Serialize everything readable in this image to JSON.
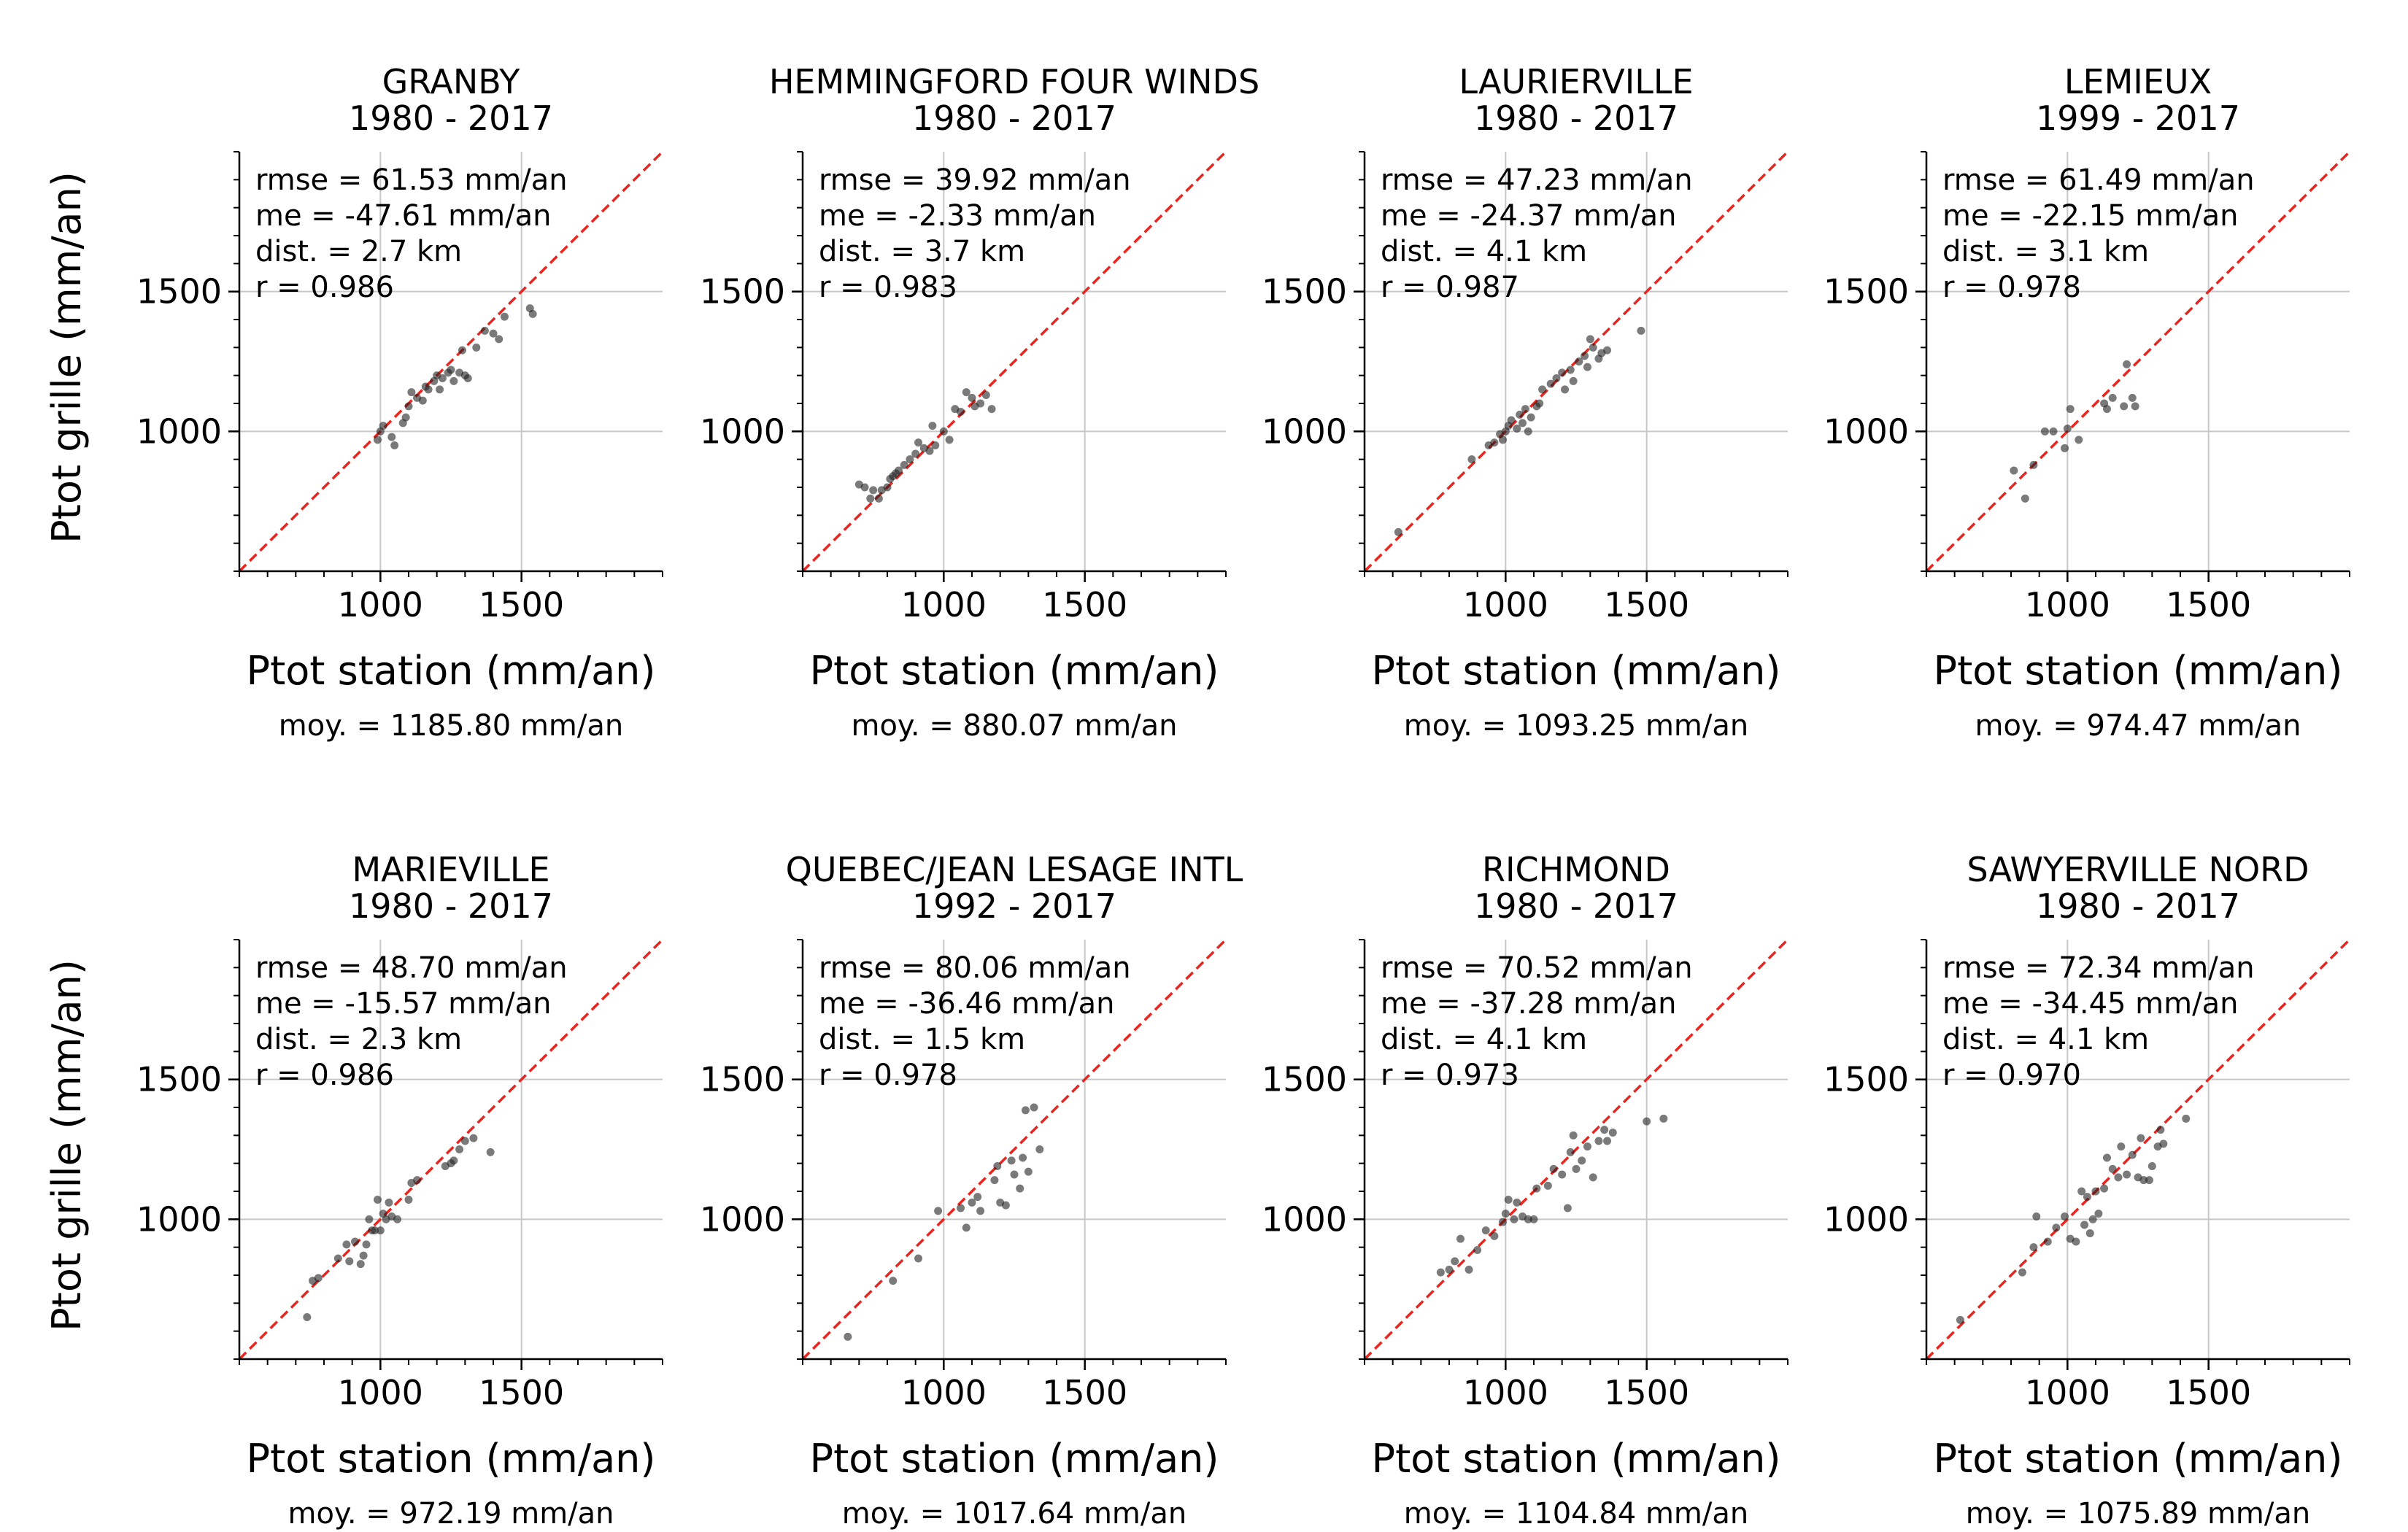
{
  "figure": {
    "ylabel": "Ptot grille (mm/an)",
    "xlabel": "Ptot station (mm/an)"
  },
  "chart_data": [
    {
      "type": "scatter",
      "title": "GRANBY",
      "subtitle": "1980 - 2017",
      "xlabel": "Ptot station (mm/an)",
      "ylabel": "Ptot grille (mm/an)",
      "xlim": [
        500,
        2000
      ],
      "ylim": [
        500,
        2000
      ],
      "xticks": [
        1000,
        1500
      ],
      "yticks": [
        1000,
        1500
      ],
      "grid": true,
      "stats": [
        "rmse = 61.53 mm/an",
        "me = -47.61 mm/an",
        "dist. = 2.7 km",
        "r = 0.986"
      ],
      "footer": "moy. = 1185.80 mm/an",
      "points": [
        [
          990,
          970
        ],
        [
          1000,
          1000
        ],
        [
          1010,
          1020
        ],
        [
          1040,
          980
        ],
        [
          1050,
          950
        ],
        [
          1080,
          1030
        ],
        [
          1090,
          1050
        ],
        [
          1100,
          1090
        ],
        [
          1110,
          1140
        ],
        [
          1130,
          1120
        ],
        [
          1150,
          1110
        ],
        [
          1160,
          1160
        ],
        [
          1170,
          1150
        ],
        [
          1190,
          1180
        ],
        [
          1200,
          1200
        ],
        [
          1210,
          1150
        ],
        [
          1220,
          1190
        ],
        [
          1240,
          1210
        ],
        [
          1250,
          1220
        ],
        [
          1260,
          1180
        ],
        [
          1280,
          1210
        ],
        [
          1290,
          1290
        ],
        [
          1300,
          1200
        ],
        [
          1310,
          1190
        ],
        [
          1340,
          1300
        ],
        [
          1370,
          1360
        ],
        [
          1400,
          1350
        ],
        [
          1420,
          1330
        ],
        [
          1440,
          1410
        ],
        [
          1530,
          1440
        ],
        [
          1540,
          1420
        ]
      ]
    },
    {
      "type": "scatter",
      "title": "HEMMINGFORD FOUR WINDS",
      "subtitle": "1980 - 2017",
      "xlabel": "Ptot station (mm/an)",
      "ylabel": "Ptot grille (mm/an)",
      "xlim": [
        500,
        2000
      ],
      "ylim": [
        500,
        2000
      ],
      "xticks": [
        1000,
        1500
      ],
      "yticks": [
        1000,
        1500
      ],
      "grid": true,
      "stats": [
        "rmse = 39.92 mm/an",
        "me = -2.33 mm/an",
        "dist. = 3.7 km",
        "r = 0.983"
      ],
      "footer": "moy. = 880.07 mm/an",
      "points": [
        [
          700,
          810
        ],
        [
          720,
          800
        ],
        [
          740,
          760
        ],
        [
          750,
          790
        ],
        [
          770,
          760
        ],
        [
          780,
          790
        ],
        [
          800,
          800
        ],
        [
          810,
          830
        ],
        [
          820,
          840
        ],
        [
          830,
          850
        ],
        [
          840,
          860
        ],
        [
          860,
          880
        ],
        [
          880,
          900
        ],
        [
          900,
          920
        ],
        [
          910,
          960
        ],
        [
          930,
          940
        ],
        [
          950,
          930
        ],
        [
          960,
          1020
        ],
        [
          970,
          950
        ],
        [
          1000,
          1000
        ],
        [
          1020,
          970
        ],
        [
          1040,
          1080
        ],
        [
          1060,
          1070
        ],
        [
          1080,
          1140
        ],
        [
          1100,
          1120
        ],
        [
          1110,
          1090
        ],
        [
          1130,
          1100
        ],
        [
          1150,
          1130
        ],
        [
          1170,
          1080
        ]
      ]
    },
    {
      "type": "scatter",
      "title": "LAURIERVILLE",
      "subtitle": "1980 - 2017",
      "xlabel": "Ptot station (mm/an)",
      "ylabel": "Ptot grille (mm/an)",
      "xlim": [
        500,
        2000
      ],
      "ylim": [
        500,
        2000
      ],
      "xticks": [
        1000,
        1500
      ],
      "yticks": [
        1000,
        1500
      ],
      "grid": true,
      "stats": [
        "rmse = 47.23 mm/an",
        "me = -24.37 mm/an",
        "dist. = 4.1 km",
        "r = 0.987"
      ],
      "footer": "moy. = 1093.25 mm/an",
      "points": [
        [
          620,
          640
        ],
        [
          880,
          900
        ],
        [
          940,
          950
        ],
        [
          960,
          960
        ],
        [
          980,
          990
        ],
        [
          990,
          970
        ],
        [
          1000,
          1000
        ],
        [
          1010,
          1020
        ],
        [
          1020,
          1040
        ],
        [
          1040,
          1010
        ],
        [
          1050,
          1060
        ],
        [
          1060,
          1030
        ],
        [
          1070,
          1080
        ],
        [
          1080,
          1000
        ],
        [
          1090,
          1050
        ],
        [
          1110,
          1090
        ],
        [
          1120,
          1100
        ],
        [
          1130,
          1150
        ],
        [
          1160,
          1170
        ],
        [
          1180,
          1190
        ],
        [
          1200,
          1210
        ],
        [
          1210,
          1150
        ],
        [
          1230,
          1220
        ],
        [
          1240,
          1180
        ],
        [
          1260,
          1250
        ],
        [
          1280,
          1270
        ],
        [
          1290,
          1230
        ],
        [
          1300,
          1330
        ],
        [
          1310,
          1300
        ],
        [
          1330,
          1260
        ],
        [
          1340,
          1280
        ],
        [
          1360,
          1290
        ],
        [
          1480,
          1360
        ]
      ]
    },
    {
      "type": "scatter",
      "title": "LEMIEUX",
      "subtitle": "1999 - 2017",
      "xlabel": "Ptot station (mm/an)",
      "ylabel": "Ptot grille (mm/an)",
      "xlim": [
        500,
        2000
      ],
      "ylim": [
        500,
        2000
      ],
      "xticks": [
        1000,
        1500
      ],
      "yticks": [
        1000,
        1500
      ],
      "grid": true,
      "stats": [
        "rmse = 61.49 mm/an",
        "me = -22.15 mm/an",
        "dist. = 3.1 km",
        "r = 0.978"
      ],
      "footer": "moy. = 974.47 mm/an",
      "points": [
        [
          810,
          860
        ],
        [
          850,
          760
        ],
        [
          880,
          880
        ],
        [
          920,
          1000
        ],
        [
          950,
          1000
        ],
        [
          990,
          940
        ],
        [
          1000,
          1010
        ],
        [
          1010,
          1080
        ],
        [
          1040,
          970
        ],
        [
          1130,
          1100
        ],
        [
          1140,
          1080
        ],
        [
          1160,
          1120
        ],
        [
          1200,
          1090
        ],
        [
          1210,
          1240
        ],
        [
          1230,
          1120
        ],
        [
          1240,
          1090
        ]
      ]
    },
    {
      "type": "scatter",
      "title": "MARIEVILLE",
      "subtitle": "1980 - 2017",
      "xlabel": "Ptot station (mm/an)",
      "ylabel": "Ptot grille (mm/an)",
      "xlim": [
        500,
        2000
      ],
      "ylim": [
        500,
        2000
      ],
      "xticks": [
        1000,
        1500
      ],
      "yticks": [
        1000,
        1500
      ],
      "grid": true,
      "stats": [
        "rmse = 48.70 mm/an",
        "me = -15.57 mm/an",
        "dist. = 2.3 km",
        "r = 0.986"
      ],
      "footer": "moy. = 972.19 mm/an",
      "points": [
        [
          740,
          650
        ],
        [
          760,
          780
        ],
        [
          780,
          790
        ],
        [
          850,
          860
        ],
        [
          880,
          910
        ],
        [
          890,
          850
        ],
        [
          910,
          920
        ],
        [
          930,
          840
        ],
        [
          940,
          870
        ],
        [
          950,
          910
        ],
        [
          960,
          1000
        ],
        [
          970,
          960
        ],
        [
          980,
          960
        ],
        [
          990,
          1070
        ],
        [
          1000,
          960
        ],
        [
          1010,
          1020
        ],
        [
          1020,
          1000
        ],
        [
          1030,
          1060
        ],
        [
          1040,
          1010
        ],
        [
          1060,
          1000
        ],
        [
          1100,
          1070
        ],
        [
          1110,
          1130
        ],
        [
          1130,
          1140
        ],
        [
          1230,
          1190
        ],
        [
          1250,
          1200
        ],
        [
          1260,
          1210
        ],
        [
          1280,
          1250
        ],
        [
          1300,
          1280
        ],
        [
          1330,
          1290
        ],
        [
          1390,
          1240
        ]
      ]
    },
    {
      "type": "scatter",
      "title": "QUEBEC/JEAN LESAGE INTL",
      "subtitle": "1992 - 2017",
      "xlabel": "Ptot station (mm/an)",
      "ylabel": "Ptot grille (mm/an)",
      "xlim": [
        500,
        2000
      ],
      "ylim": [
        500,
        2000
      ],
      "xticks": [
        1000,
        1500
      ],
      "yticks": [
        1000,
        1500
      ],
      "grid": true,
      "stats": [
        "rmse = 80.06 mm/an",
        "me = -36.46 mm/an",
        "dist. = 1.5 km",
        "r = 0.978"
      ],
      "footer": "moy. = 1017.64 mm/an",
      "points": [
        [
          660,
          580
        ],
        [
          820,
          780
        ],
        [
          910,
          860
        ],
        [
          980,
          1030
        ],
        [
          1060,
          1040
        ],
        [
          1080,
          970
        ],
        [
          1100,
          1060
        ],
        [
          1120,
          1080
        ],
        [
          1130,
          1030
        ],
        [
          1180,
          1140
        ],
        [
          1190,
          1190
        ],
        [
          1200,
          1060
        ],
        [
          1220,
          1050
        ],
        [
          1240,
          1210
        ],
        [
          1250,
          1160
        ],
        [
          1270,
          1110
        ],
        [
          1280,
          1220
        ],
        [
          1290,
          1390
        ],
        [
          1300,
          1170
        ],
        [
          1320,
          1400
        ],
        [
          1340,
          1250
        ]
      ]
    },
    {
      "type": "scatter",
      "title": "RICHMOND",
      "subtitle": "1980 - 2017",
      "xlabel": "Ptot station (mm/an)",
      "ylabel": "Ptot grille (mm/an)",
      "xlim": [
        500,
        2000
      ],
      "ylim": [
        500,
        2000
      ],
      "xticks": [
        1000,
        1500
      ],
      "yticks": [
        1000,
        1500
      ],
      "grid": true,
      "stats": [
        "rmse = 70.52 mm/an",
        "me = -37.28 mm/an",
        "dist. = 4.1 km",
        "r = 0.973"
      ],
      "footer": "moy. = 1104.84 mm/an",
      "points": [
        [
          770,
          810
        ],
        [
          800,
          820
        ],
        [
          820,
          850
        ],
        [
          840,
          930
        ],
        [
          870,
          820
        ],
        [
          900,
          890
        ],
        [
          930,
          960
        ],
        [
          960,
          940
        ],
        [
          990,
          990
        ],
        [
          1000,
          1020
        ],
        [
          1010,
          1070
        ],
        [
          1030,
          1000
        ],
        [
          1040,
          1060
        ],
        [
          1060,
          1010
        ],
        [
          1080,
          1000
        ],
        [
          1100,
          1000
        ],
        [
          1110,
          1110
        ],
        [
          1150,
          1120
        ],
        [
          1170,
          1180
        ],
        [
          1200,
          1160
        ],
        [
          1220,
          1040
        ],
        [
          1230,
          1240
        ],
        [
          1240,
          1300
        ],
        [
          1250,
          1180
        ],
        [
          1270,
          1210
        ],
        [
          1290,
          1260
        ],
        [
          1310,
          1150
        ],
        [
          1330,
          1280
        ],
        [
          1350,
          1320
        ],
        [
          1360,
          1280
        ],
        [
          1380,
          1310
        ],
        [
          1500,
          1350
        ],
        [
          1560,
          1360
        ]
      ]
    },
    {
      "type": "scatter",
      "title": "SAWYERVILLE NORD",
      "subtitle": "1980 - 2017",
      "xlabel": "Ptot station (mm/an)",
      "ylabel": "Ptot grille (mm/an)",
      "xlim": [
        500,
        2000
      ],
      "ylim": [
        500,
        2000
      ],
      "xticks": [
        1000,
        1500
      ],
      "yticks": [
        1000,
        1500
      ],
      "grid": true,
      "stats": [
        "rmse = 72.34 mm/an",
        "me = -34.45 mm/an",
        "dist. = 4.1 km",
        "r = 0.970"
      ],
      "footer": "moy. = 1075.89 mm/an",
      "points": [
        [
          620,
          640
        ],
        [
          840,
          810
        ],
        [
          880,
          900
        ],
        [
          890,
          1010
        ],
        [
          930,
          920
        ],
        [
          960,
          970
        ],
        [
          990,
          1010
        ],
        [
          1010,
          930
        ],
        [
          1030,
          920
        ],
        [
          1050,
          1100
        ],
        [
          1060,
          980
        ],
        [
          1070,
          1080
        ],
        [
          1080,
          950
        ],
        [
          1090,
          1000
        ],
        [
          1100,
          1100
        ],
        [
          1110,
          1020
        ],
        [
          1130,
          1110
        ],
        [
          1140,
          1220
        ],
        [
          1160,
          1180
        ],
        [
          1180,
          1150
        ],
        [
          1190,
          1260
        ],
        [
          1210,
          1160
        ],
        [
          1230,
          1230
        ],
        [
          1250,
          1150
        ],
        [
          1260,
          1290
        ],
        [
          1270,
          1140
        ],
        [
          1290,
          1140
        ],
        [
          1300,
          1190
        ],
        [
          1320,
          1260
        ],
        [
          1330,
          1320
        ],
        [
          1340,
          1270
        ],
        [
          1420,
          1360
        ]
      ]
    }
  ]
}
